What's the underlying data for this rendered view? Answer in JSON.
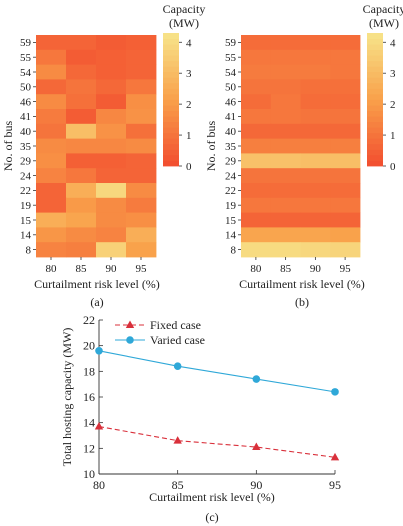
{
  "colors": {
    "scale": [
      "#f24d2f",
      "#f9a04a",
      "#f7e48a"
    ],
    "fixed": "#d9303b",
    "varied": "#2fa8d8"
  },
  "chart_data": [
    {
      "type": "heatmap",
      "panel_label": "(a)",
      "ylabel": "No. of bus",
      "xlabel": "Curtailment risk level (%)",
      "x_categories": [
        "80",
        "85",
        "90",
        "95"
      ],
      "y_categories": [
        "59",
        "55",
        "54",
        "50",
        "46",
        "41",
        "40",
        "35",
        "29",
        "24",
        "22",
        "19",
        "15",
        "14",
        "8"
      ],
      "colorbar": {
        "title": [
          "Capacity",
          "(MW)"
        ],
        "ticks": [
          "0",
          "1",
          "2",
          "3",
          "4"
        ],
        "range": [
          0,
          4.3
        ]
      },
      "values": [
        [
          0.6,
          0.6,
          0.4,
          0.5
        ],
        [
          1.1,
          0.4,
          0.5,
          0.6
        ],
        [
          1.6,
          0.7,
          0.5,
          0.6
        ],
        [
          0.7,
          1.0,
          0.7,
          1.1
        ],
        [
          1.6,
          0.9,
          0.4,
          1.7
        ],
        [
          1.2,
          0.4,
          1.5,
          1.8
        ],
        [
          1.0,
          3.1,
          1.8,
          0.9
        ],
        [
          1.6,
          1.5,
          1.5,
          1.6
        ],
        [
          1.7,
          0.5,
          0.5,
          0.6
        ],
        [
          1.4,
          1.1,
          0.6,
          0.6
        ],
        [
          0.6,
          2.6,
          3.9,
          1.6
        ],
        [
          0.6,
          2.0,
          1.6,
          1.2
        ],
        [
          2.6,
          2.3,
          1.6,
          1.7
        ],
        [
          1.9,
          1.6,
          1.4,
          2.6
        ],
        [
          1.4,
          1.3,
          3.7,
          2.2
        ]
      ]
    },
    {
      "type": "heatmap",
      "panel_label": "(b)",
      "ylabel": "No. of bus",
      "xlabel": "Curtailment risk level (%)",
      "x_categories": [
        "80",
        "85",
        "90",
        "95"
      ],
      "y_categories": [
        "59",
        "55",
        "54",
        "50",
        "46",
        "41",
        "40",
        "35",
        "29",
        "24",
        "22",
        "19",
        "15",
        "14",
        "8"
      ],
      "colorbar": {
        "title": [
          "Capacity",
          "(MW)"
        ],
        "ticks": [
          "0",
          "1",
          "2",
          "3",
          "4"
        ],
        "range": [
          0,
          4.3
        ]
      },
      "values": [
        [
          0.8,
          0.8,
          0.8,
          0.8
        ],
        [
          1.1,
          1.1,
          1.1,
          1.1
        ],
        [
          1.2,
          1.2,
          1.2,
          1.1
        ],
        [
          1.0,
          1.0,
          0.9,
          0.9
        ],
        [
          0.8,
          1.1,
          0.8,
          0.8
        ],
        [
          1.1,
          1.1,
          1.0,
          1.0
        ],
        [
          0.7,
          0.7,
          0.7,
          0.7
        ],
        [
          1.3,
          1.3,
          1.3,
          1.3
        ],
        [
          3.2,
          3.2,
          3.1,
          3.1
        ],
        [
          1.0,
          1.0,
          1.0,
          1.0
        ],
        [
          0.8,
          0.8,
          0.8,
          0.8
        ],
        [
          1.1,
          1.1,
          1.1,
          1.1
        ],
        [
          0.6,
          0.6,
          0.6,
          0.6
        ],
        [
          2.3,
          2.3,
          2.3,
          2.2
        ],
        [
          4.0,
          4.0,
          3.9,
          3.8
        ]
      ]
    },
    {
      "type": "line",
      "panel_label": "(c)",
      "xlabel": "Curtailment risk level (%)",
      "ylabel": "Total hosting capacity (MW)",
      "x": [
        80,
        85,
        90,
        95
      ],
      "xlim": [
        80,
        95
      ],
      "ylim": [
        10,
        22
      ],
      "xticks": [
        "80",
        "85",
        "90",
        "95"
      ],
      "yticks": [
        "10",
        "12",
        "14",
        "16",
        "18",
        "20",
        "22"
      ],
      "legend": "top-left",
      "series": [
        {
          "name": "Fixed case",
          "values": [
            13.7,
            12.6,
            12.1,
            11.3
          ],
          "marker": "triangle",
          "dash": true
        },
        {
          "name": "Varied case",
          "values": [
            19.6,
            18.4,
            17.4,
            16.4
          ],
          "marker": "circle",
          "dash": false
        }
      ]
    }
  ]
}
